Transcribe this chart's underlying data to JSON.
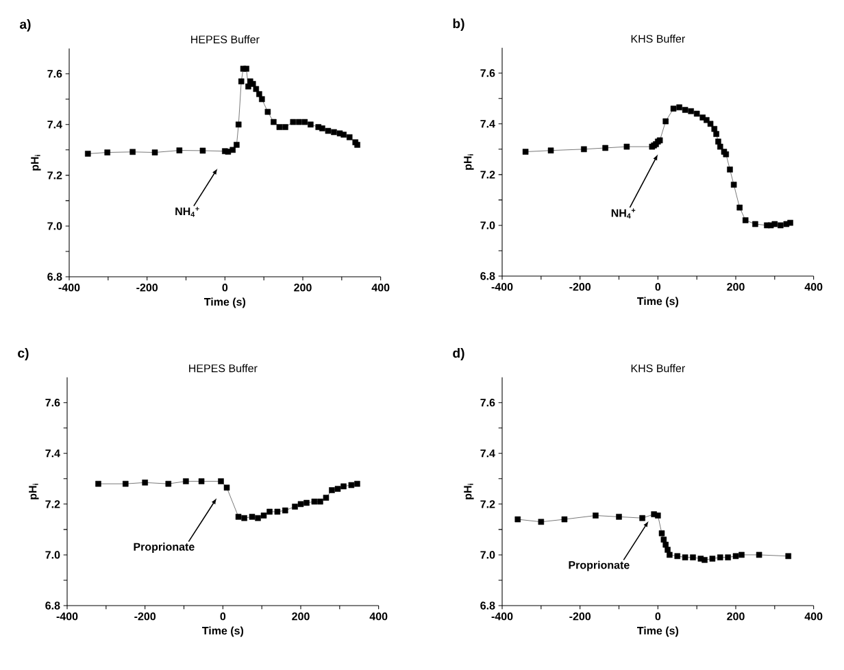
{
  "chart_data": [
    {
      "type": "line",
      "title": "HEPES Buffer",
      "xlabel": "Time (s)",
      "ylabel": "pH$_{i}$",
      "marker": "square",
      "line_style": "solid",
      "x": [
        -352,
        -302,
        -237,
        -180,
        -117,
        -57,
        0,
        8,
        20,
        30,
        35,
        42,
        47,
        55,
        60,
        65,
        72,
        80,
        88,
        95,
        110,
        125,
        140,
        155,
        175,
        190,
        205,
        220,
        240,
        250,
        265,
        280,
        295,
        305,
        320,
        335,
        340
      ],
      "series": [
        {
          "color": "#000000",
          "values": [
            7.285,
            7.29,
            7.292,
            7.29,
            7.298,
            7.297,
            7.295,
            7.293,
            7.3,
            7.32,
            7.4,
            7.57,
            7.62,
            7.62,
            7.55,
            7.57,
            7.56,
            7.54,
            7.52,
            7.5,
            7.45,
            7.41,
            7.39,
            7.39,
            7.41,
            7.41,
            7.41,
            7.4,
            7.39,
            7.385,
            7.375,
            7.37,
            7.365,
            7.36,
            7.35,
            7.33,
            7.32
          ]
        }
      ],
      "xlim": [
        -400,
        400
      ],
      "ylim": [
        6.8,
        7.7
      ],
      "xticks": [
        -400,
        {
          "value": -300,
          "label": null
        },
        -200,
        {
          "value": -100,
          "label": null
        },
        0,
        {
          "value": 100,
          "label": null
        },
        200,
        {
          "value": 300,
          "label": null
        },
        400
      ],
      "yticks": [
        {
          "value": 6.8,
          "label": "6.8"
        },
        {
          "value": 6.9,
          "label": null
        },
        {
          "value": 7.0,
          "label": "7.0"
        },
        {
          "value": 7.1,
          "label": null
        },
        {
          "value": 7.2,
          "label": "7.2"
        },
        {
          "value": 7.3,
          "label": null
        },
        {
          "value": 7.4,
          "label": "7.4"
        },
        {
          "value": 7.5,
          "label": null
        },
        {
          "value": 7.6,
          "label": "7.6"
        }
      ],
      "annotations": [
        "a)",
        "NH$_{4}$$^{+}$"
      ]
    },
    {
      "type": "line",
      "title": "KHS Buffer",
      "xlabel": "Time (s)",
      "ylabel": "pH$_{i}$",
      "marker": "square",
      "line_style": "solid",
      "x": [
        -340,
        -275,
        -190,
        -135,
        -80,
        -15,
        -10,
        -5,
        0,
        5,
        20,
        40,
        55,
        70,
        85,
        100,
        115,
        125,
        135,
        145,
        150,
        155,
        160,
        170,
        175,
        185,
        195,
        210,
        225,
        250,
        280,
        290,
        300,
        315,
        330,
        340
      ],
      "series": [
        {
          "color": "#000000",
          "values": [
            7.29,
            7.295,
            7.3,
            7.305,
            7.31,
            7.31,
            7.315,
            7.32,
            7.33,
            7.335,
            7.41,
            7.46,
            7.465,
            7.455,
            7.45,
            7.44,
            7.425,
            7.415,
            7.4,
            7.38,
            7.36,
            7.33,
            7.31,
            7.29,
            7.28,
            7.22,
            7.16,
            7.07,
            7.02,
            7.005,
            7.0,
            7.0,
            7.005,
            7.0,
            7.005,
            7.01
          ]
        }
      ],
      "xlim": [
        -400,
        400
      ],
      "ylim": [
        6.8,
        7.7
      ],
      "xticks": [
        -400,
        {
          "value": -300,
          "label": null
        },
        -200,
        {
          "value": -100,
          "label": null
        },
        0,
        {
          "value": 100,
          "label": null
        },
        200,
        {
          "value": 300,
          "label": null
        },
        400
      ],
      "yticks": [
        {
          "value": 6.8,
          "label": "6.8"
        },
        {
          "value": 6.9,
          "label": null
        },
        {
          "value": 7.0,
          "label": "7.0"
        },
        {
          "value": 7.1,
          "label": null
        },
        {
          "value": 7.2,
          "label": "7.2"
        },
        {
          "value": 7.3,
          "label": null
        },
        {
          "value": 7.4,
          "label": "7.4"
        },
        {
          "value": 7.5,
          "label": null
        },
        {
          "value": 7.6,
          "label": "7.6"
        }
      ],
      "annotations": [
        "b)",
        "NH$_{4}$$^{+}$"
      ]
    },
    {
      "type": "line",
      "title": "HEPES Buffer",
      "xlabel": "Time (s)",
      "ylabel": "pH$_{i}$",
      "marker": "square",
      "line_style": "solid",
      "x": [
        -320,
        -250,
        -200,
        -140,
        -95,
        -55,
        -5,
        10,
        40,
        55,
        75,
        90,
        105,
        120,
        140,
        160,
        185,
        200,
        215,
        235,
        250,
        265,
        280,
        295,
        310,
        330,
        345
      ],
      "series": [
        {
          "color": "#000000",
          "values": [
            7.28,
            7.28,
            7.285,
            7.28,
            7.29,
            7.29,
            7.29,
            7.265,
            7.15,
            7.145,
            7.15,
            7.145,
            7.155,
            7.17,
            7.17,
            7.175,
            7.19,
            7.2,
            7.205,
            7.21,
            7.21,
            7.225,
            7.255,
            7.26,
            7.27,
            7.275,
            7.28
          ]
        }
      ],
      "xlim": [
        -400,
        400
      ],
      "ylim": [
        6.8,
        7.7
      ],
      "xticks": [
        -400,
        {
          "value": -300,
          "label": null
        },
        -200,
        {
          "value": -100,
          "label": null
        },
        0,
        {
          "value": 100,
          "label": null
        },
        200,
        {
          "value": 300,
          "label": null
        },
        400
      ],
      "yticks": [
        {
          "value": 6.8,
          "label": "6.8"
        },
        {
          "value": 6.9,
          "label": null
        },
        {
          "value": 7.0,
          "label": "7.0"
        },
        {
          "value": 7.1,
          "label": null
        },
        {
          "value": 7.2,
          "label": "7.2"
        },
        {
          "value": 7.3,
          "label": null
        },
        {
          "value": 7.4,
          "label": "7.4"
        },
        {
          "value": 7.5,
          "label": null
        },
        {
          "value": 7.6,
          "label": "7.6"
        }
      ],
      "annotations": [
        "c)",
        "Proprionate"
      ]
    },
    {
      "type": "line",
      "title": "KHS Buffer",
      "xlabel": "Time (s)",
      "ylabel": "pH$_{i}$",
      "marker": "square",
      "line_style": "solid",
      "x": [
        -360,
        -300,
        -240,
        -160,
        -100,
        -40,
        -10,
        0,
        10,
        15,
        20,
        25,
        30,
        50,
        70,
        90,
        110,
        120,
        140,
        160,
        180,
        200,
        215,
        260,
        335
      ],
      "series": [
        {
          "color": "#000000",
          "values": [
            7.14,
            7.13,
            7.14,
            7.155,
            7.15,
            7.145,
            7.16,
            7.155,
            7.085,
            7.06,
            7.04,
            7.02,
            7.0,
            6.995,
            6.99,
            6.99,
            6.985,
            6.98,
            6.985,
            6.99,
            6.99,
            6.995,
            7.0,
            7.0,
            6.995
          ]
        }
      ],
      "xlim": [
        -400,
        400
      ],
      "ylim": [
        6.8,
        7.7
      ],
      "xticks": [
        -400,
        {
          "value": -300,
          "label": null
        },
        -200,
        {
          "value": -100,
          "label": null
        },
        0,
        {
          "value": 100,
          "label": null
        },
        200,
        {
          "value": 300,
          "label": null
        },
        400
      ],
      "yticks": [
        {
          "value": 6.8,
          "label": "6.8"
        },
        {
          "value": 6.9,
          "label": null
        },
        {
          "value": 7.0,
          "label": "7.0"
        },
        {
          "value": 7.1,
          "label": null
        },
        {
          "value": 7.2,
          "label": "7.2"
        },
        {
          "value": 7.3,
          "label": null
        },
        {
          "value": 7.4,
          "label": "7.4"
        },
        {
          "value": 7.5,
          "label": null
        },
        {
          "value": 7.6,
          "label": "7.6"
        }
      ],
      "annotations": [
        "d)",
        "Proprionate"
      ]
    }
  ]
}
